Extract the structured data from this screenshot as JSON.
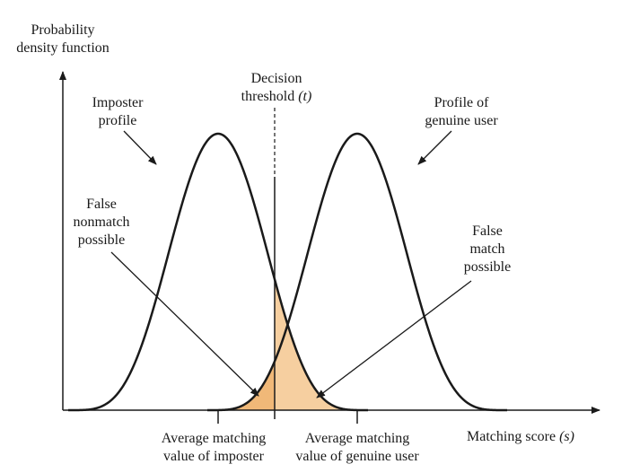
{
  "y_axis_label": [
    "Probability",
    "density function"
  ],
  "x_axis_label": {
    "text": "Matching score ",
    "var": "(s)"
  },
  "threshold_label": {
    "line1": "Decision",
    "line2": "threshold ",
    "var": "(t)"
  },
  "imposter_profile_label": [
    "Imposter",
    "profile"
  ],
  "genuine_profile_label": [
    "Profile of",
    "genuine user"
  ],
  "false_nonmatch_label": [
    "False",
    "nonmatch",
    "possible"
  ],
  "false_match_label": [
    "False",
    "match",
    "possible"
  ],
  "avg_imposter_label": [
    "Average matching",
    "value of imposter"
  ],
  "avg_genuine_label": [
    "Average matching",
    "value of genuine user"
  ],
  "colors": {
    "curve": "#1a1a1a",
    "false_nonmatch_fill": "#f0b878",
    "false_match_fill": "#f6cfa0",
    "background": "#ffffff"
  }
}
